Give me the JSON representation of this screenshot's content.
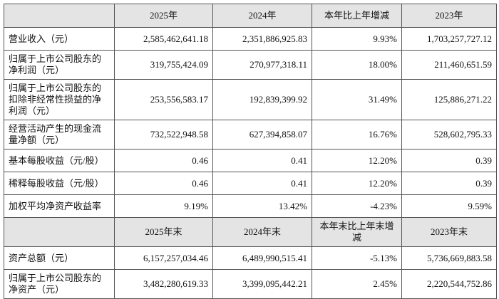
{
  "sections": [
    {
      "header": [
        "2025年",
        "2024年",
        "本年比上年增减",
        "2023年"
      ],
      "rows": [
        [
          "营业收入（元）",
          "2,585,462,641.18",
          "2,351,886,925.83",
          "9.93%",
          "1,703,257,727.12"
        ],
        [
          "归属于上市公司股东的净利润（元）",
          "319,755,424.09",
          "270,977,318.11",
          "18.00%",
          "211,460,651.59"
        ],
        [
          "归属于上市公司股东的扣除非经常性损益的净利润（元）",
          "253,556,583.17",
          "192,839,399.92",
          "31.49%",
          "125,886,271.22"
        ],
        [
          "经营活动产生的现金流量净额（元）",
          "732,522,948.58",
          "627,394,858.07",
          "16.76%",
          "528,602,795.33"
        ],
        [
          "基本每股收益（元/股）",
          "0.46",
          "0.41",
          "12.20%",
          "0.39"
        ],
        [
          "稀释每股收益（元/股）",
          "0.46",
          "0.41",
          "12.20%",
          "0.39"
        ],
        [
          "加权平均净资产收益率",
          "9.19%",
          "13.42%",
          "-4.23%",
          "9.59%"
        ]
      ]
    },
    {
      "header": [
        "2025年末",
        "2024年末",
        "本年末比上年末增减",
        "2023年末"
      ],
      "rows": [
        [
          "资产总额（元）",
          "6,157,257,034.46",
          "6,489,990,515.41",
          "-5.13%",
          "5,736,669,883.58"
        ],
        [
          "归属于上市公司股东的净资产（元）",
          "3,482,280,619.33",
          "3,399,095,442.21",
          "2.45%",
          "2,220,544,752.86"
        ]
      ]
    }
  ]
}
